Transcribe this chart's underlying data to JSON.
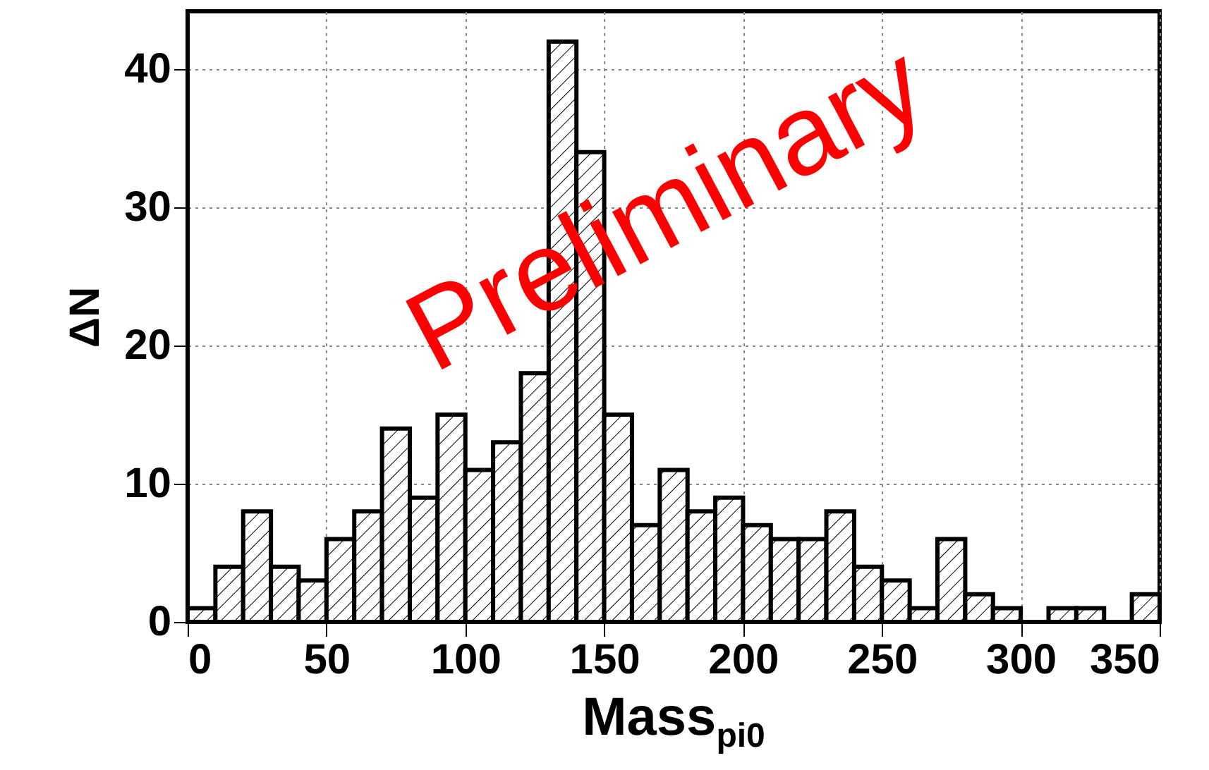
{
  "chart_data": {
    "type": "histogram",
    "xlabel": "Mass$_{pi0}$",
    "ylabel": "ΔN",
    "annotations": [
      "Preliminary"
    ],
    "bins": [
      0,
      10,
      20,
      30,
      40,
      50,
      60,
      70,
      80,
      90,
      100,
      110,
      120,
      130,
      140,
      150,
      160,
      170,
      180,
      190,
      200,
      210,
      220,
      230,
      240,
      250,
      260,
      270,
      280,
      290,
      300,
      310,
      320,
      330,
      340,
      350
    ],
    "values": [
      1,
      4,
      8,
      4,
      3,
      6,
      8,
      14,
      9,
      15,
      11,
      13,
      18,
      42,
      34,
      15,
      7,
      11,
      8,
      9,
      7,
      6,
      6,
      8,
      4,
      3,
      1,
      6,
      2,
      1,
      0,
      1,
      1,
      0,
      2
    ],
    "color": "#000000",
    "xlim": [
      0,
      350
    ],
    "xticks": [
      0,
      50,
      100,
      150,
      200,
      250,
      300,
      350
    ],
    "ylim": [
      0,
      44.2
    ],
    "yticks": [
      0,
      10,
      20,
      30,
      40
    ],
    "grid": true
  }
}
